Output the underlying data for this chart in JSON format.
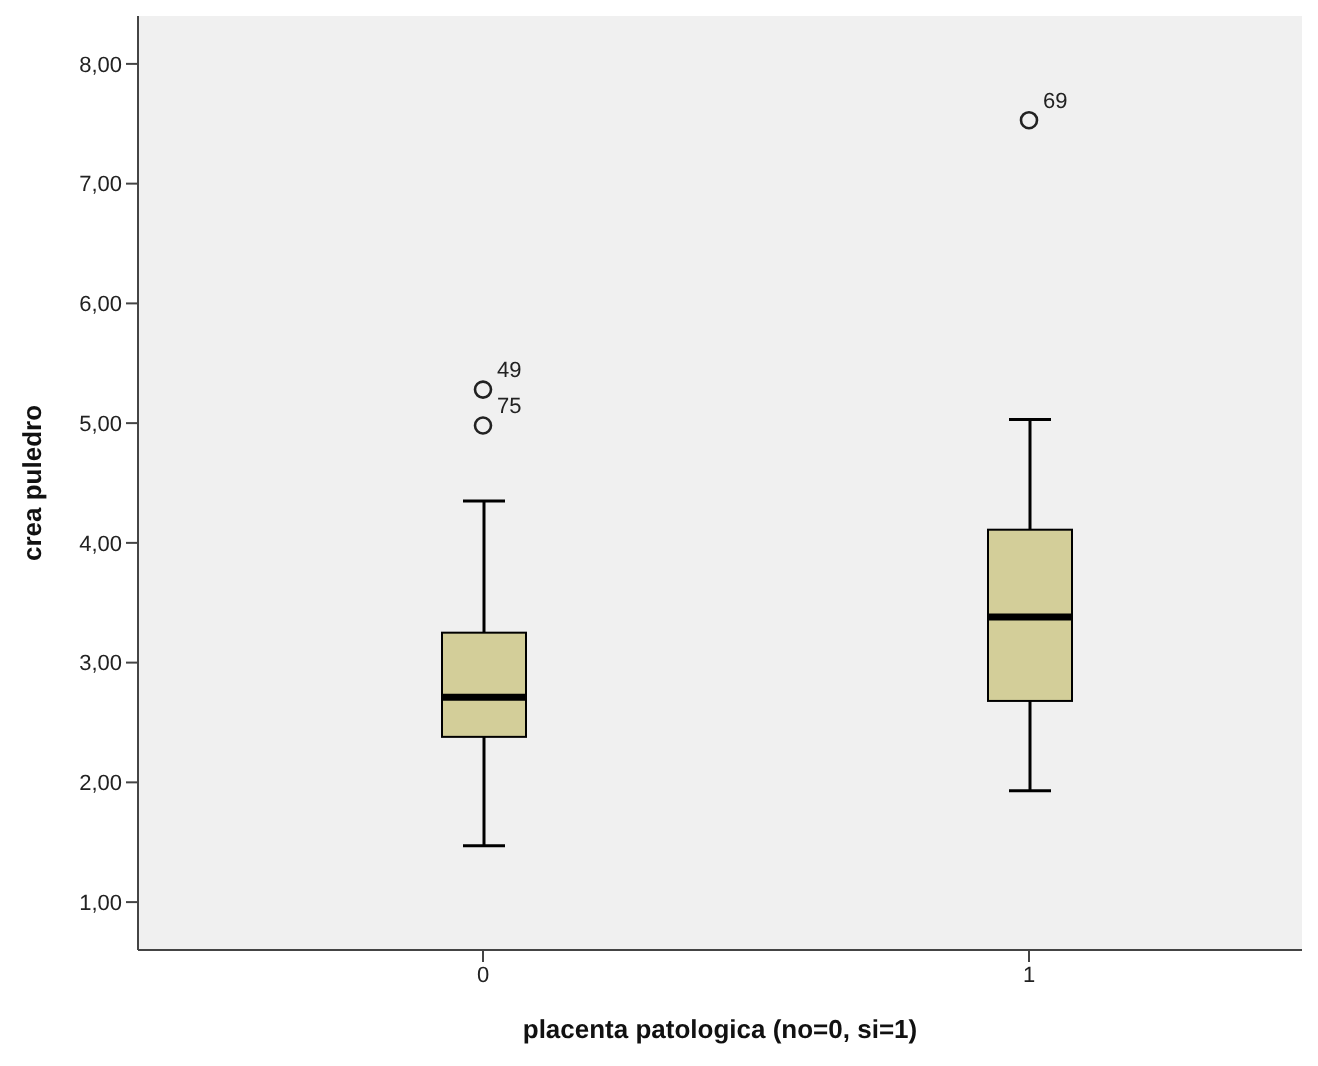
{
  "chart_data": {
    "type": "box",
    "xlabel": "placenta patologica (no=0, si=1)",
    "ylabel": "crea puledro",
    "categories": [
      "0",
      "1"
    ],
    "color": "#d3ce99",
    "boxes": [
      {
        "low": 1.47,
        "q1": 2.38,
        "median": 2.71,
        "q3": 3.25,
        "high": 4.35,
        "outliers": [
          5.28,
          4.98
        ]
      },
      {
        "low": 1.93,
        "q1": 2.68,
        "median": 3.38,
        "q3": 4.11,
        "high": 5.03,
        "outliers": [
          7.53
        ]
      }
    ],
    "ylim": [
      0.6,
      8.4
    ],
    "yticks": [
      {
        "value": 1,
        "label": "1,00"
      },
      {
        "value": 2,
        "label": "2,00"
      },
      {
        "value": 3,
        "label": "3,00"
      },
      {
        "value": 4,
        "label": "4,00"
      },
      {
        "value": 5,
        "label": "5,00"
      },
      {
        "value": 6,
        "label": "6,00"
      },
      {
        "value": 7,
        "label": "7,00"
      },
      {
        "value": 8,
        "label": "8,00"
      }
    ],
    "annotations": [
      "49",
      "75",
      "69"
    ],
    "grid": false,
    "legend": false
  }
}
